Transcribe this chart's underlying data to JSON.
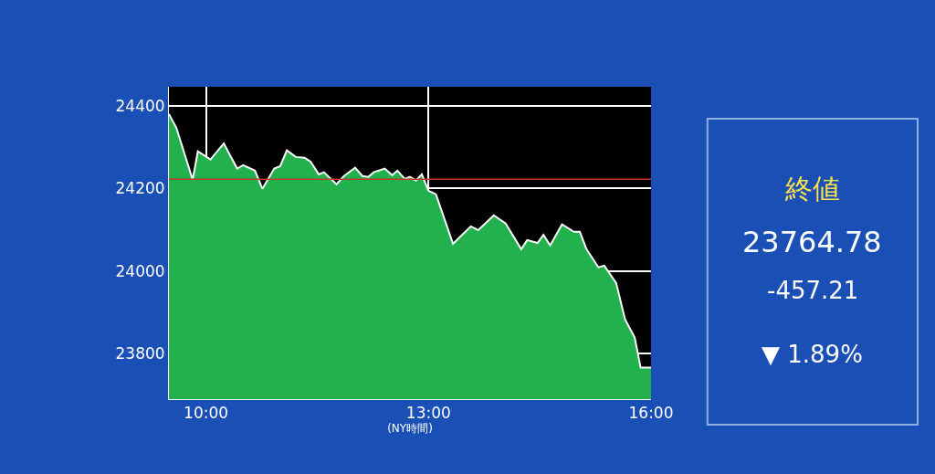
{
  "chart_data": {
    "type": "area",
    "xlabel": "(NY時間)",
    "x": [
      9.5,
      9.6,
      9.82,
      9.89,
      10.06,
      10.24,
      10.42,
      10.5,
      10.66,
      10.76,
      10.92,
      11.0,
      11.09,
      11.21,
      11.33,
      11.41,
      11.52,
      11.59,
      11.76,
      11.86,
      12.01,
      12.11,
      12.19,
      12.26,
      12.41,
      12.51,
      12.58,
      12.68,
      12.75,
      12.83,
      12.91,
      13.0,
      13.1,
      13.33,
      13.57,
      13.67,
      13.88,
      14.04,
      14.25,
      14.33,
      14.47,
      14.55,
      14.64,
      14.8,
      14.96,
      15.04,
      15.13,
      15.29,
      15.37,
      15.53,
      15.65,
      15.78,
      15.86,
      16.0
    ],
    "series": [
      {
        "color": "#22b14c",
        "values": [
          24380,
          24347,
          24221,
          24290,
          24270,
          24309,
          24248,
          24256,
          24243,
          24199,
          24248,
          24254,
          24292,
          24276,
          24274,
          24265,
          24234,
          24239,
          24210,
          24230,
          24250,
          24230,
          24228,
          24239,
          24248,
          24232,
          24243,
          24223,
          24228,
          24219,
          24234,
          24194,
          24186,
          24066,
          24108,
          24099,
          24135,
          24115,
          24053,
          24075,
          24068,
          24088,
          24062,
          24113,
          24095,
          24095,
          24053,
          24009,
          24013,
          23971,
          23883,
          23839,
          23766,
          23766
        ]
      }
    ],
    "xlim": [
      9.5,
      16
    ],
    "xticks": [
      {
        "value": 10,
        "label": "10:00"
      },
      {
        "value": 13,
        "label": "13:00"
      },
      {
        "value": 16,
        "label": "16:00"
      }
    ],
    "ylim": [
      23690,
      24446
    ],
    "yticks": [
      23800,
      24000,
      24200,
      24400
    ],
    "grid": true,
    "ref_lines": [
      {
        "axis": "y",
        "value": 24222,
        "color": "#c0392b"
      }
    ],
    "annotations": [
      "終値",
      "23764.78",
      "-457.21",
      "▼ 1.89%"
    ]
  }
}
